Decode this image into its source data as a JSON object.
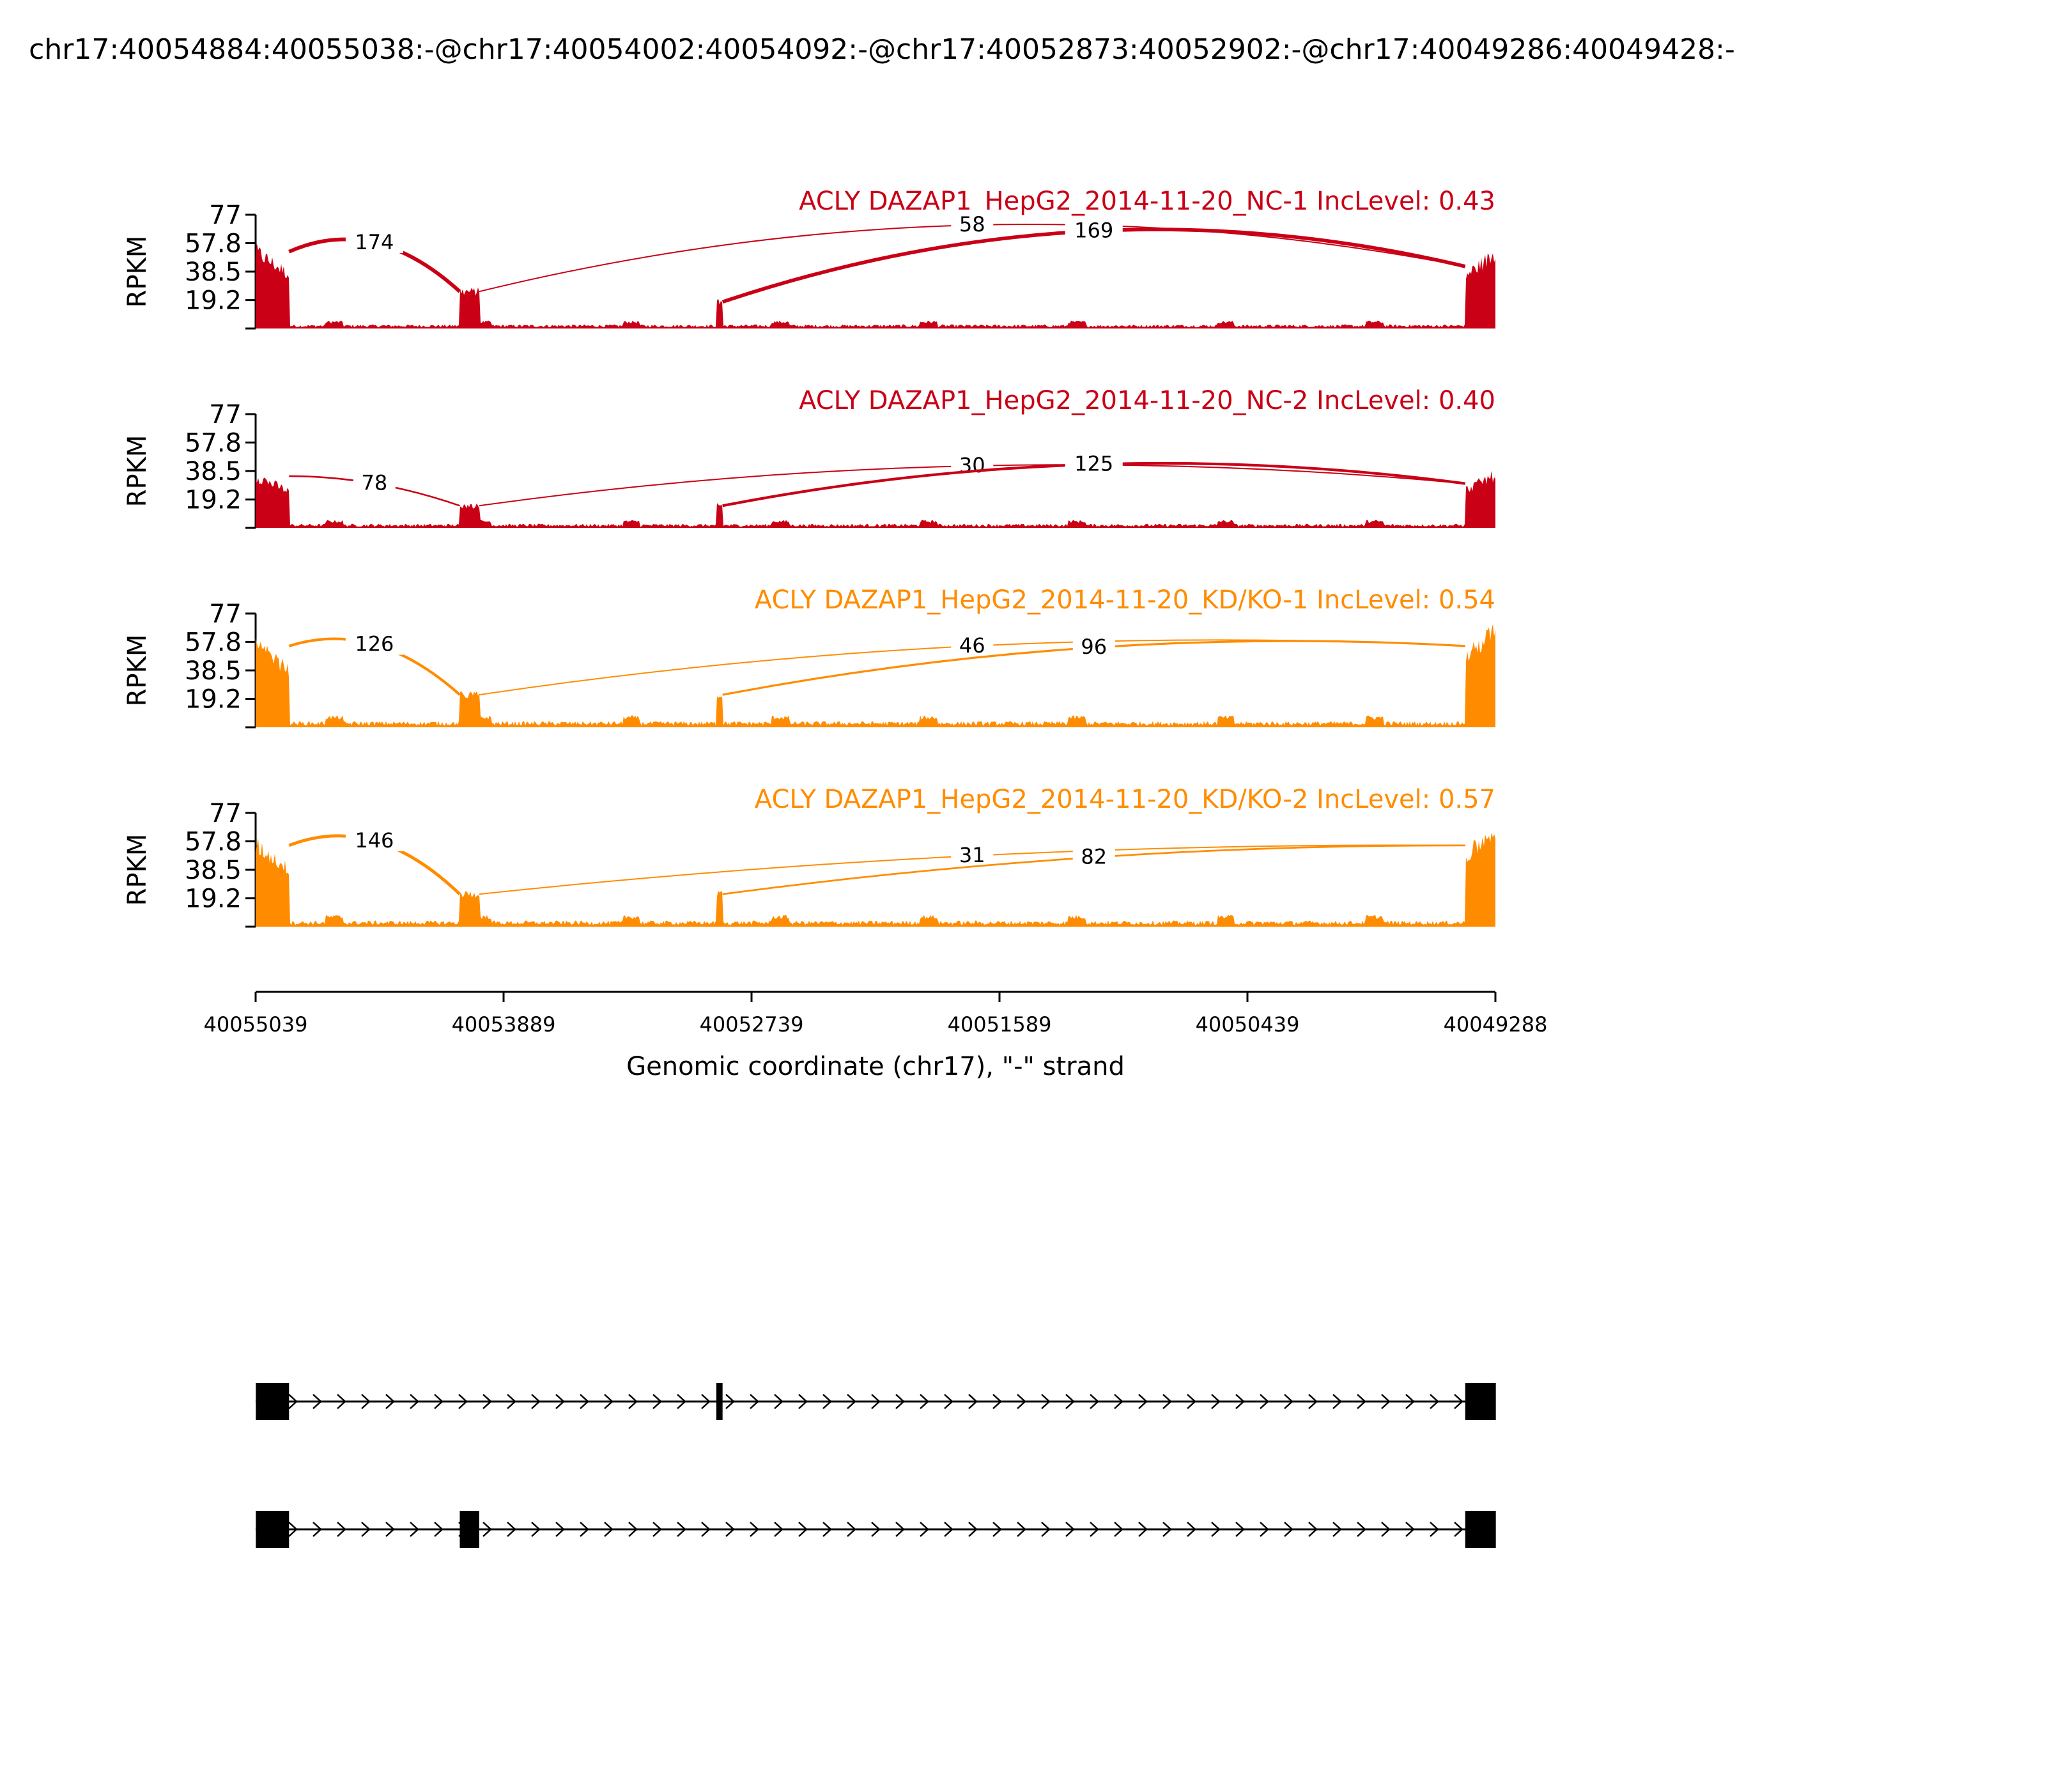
{
  "chart_data": {
    "type": "area",
    "title": "chr17:40054884:40055038:-@chr17:40054002:40054092:-@chr17:40052873:40052902:-@chr17:40049286:40049428:-",
    "ylabel": "RPKM",
    "yticks": [
      "77",
      "57.8",
      "38.5",
      "19.2"
    ],
    "ylim": [
      0,
      77
    ],
    "xlabel": "Genomic coordinate (chr17), \"-\" strand",
    "xticks": [
      "40055039",
      "40053889",
      "40052739",
      "40051589",
      "40050439",
      "40049288"
    ],
    "xlim": [
      40055039,
      40049288
    ],
    "exons": [
      {
        "start": 40055038,
        "end": 40054884
      },
      {
        "start": 40054092,
        "end": 40054002
      },
      {
        "start": 40052902,
        "end": 40052873
      },
      {
        "start": 40049428,
        "end": 40049286
      }
    ],
    "panels": [
      {
        "label": "ACLY DAZAP1_HepG2_2014-11-20_NC-1 IncLevel: 0.43",
        "color": "#C90016",
        "exon_levels": [
          52,
          25,
          18,
          42
        ],
        "intron_level": 2,
        "junctions": [
          {
            "from": 40054884,
            "to": 40054092,
            "count": "174",
            "height": 58
          },
          {
            "from": 40054002,
            "to": 40049428,
            "count": "58",
            "height": 70
          },
          {
            "from": 40052873,
            "to": 40049428,
            "count": "169",
            "height": 66
          }
        ]
      },
      {
        "label": "ACLY DAZAP1_HepG2_2014-11-20_NC-2 IncLevel: 0.40",
        "color": "#C90016",
        "exon_levels": [
          35,
          15,
          15,
          30
        ],
        "intron_level": 2,
        "junctions": [
          {
            "from": 40054884,
            "to": 40054092,
            "count": "78",
            "height": 30
          },
          {
            "from": 40054002,
            "to": 40049428,
            "count": "30",
            "height": 42
          },
          {
            "from": 40052873,
            "to": 40049428,
            "count": "125",
            "height": 43
          }
        ]
      },
      {
        "label": "ACLY DAZAP1_HepG2_2014-11-20_KD/KO-1 IncLevel: 0.54",
        "color": "#FF8C00",
        "exon_levels": [
          55,
          22,
          22,
          55
        ],
        "intron_level": 3,
        "junctions": [
          {
            "from": 40054884,
            "to": 40054092,
            "count": "126",
            "height": 56
          },
          {
            "from": 40054002,
            "to": 40049428,
            "count": "46",
            "height": 55
          },
          {
            "from": 40052873,
            "to": 40049428,
            "count": "96",
            "height": 54
          }
        ]
      },
      {
        "label": "ACLY DAZAP1_HepG2_2014-11-20_KD/KO-2 IncLevel: 0.57",
        "color": "#FF8C00",
        "exon_levels": [
          55,
          22,
          22,
          55
        ],
        "intron_level": 3,
        "junctions": [
          {
            "from": 40054884,
            "to": 40054092,
            "count": "146",
            "height": 58
          },
          {
            "from": 40054002,
            "to": 40049428,
            "count": "31",
            "height": 48
          },
          {
            "from": 40052873,
            "to": 40049428,
            "count": "82",
            "height": 47
          }
        ]
      }
    ],
    "isoforms": [
      {
        "exons": [
          0,
          2,
          3
        ]
      },
      {
        "exons": [
          0,
          1,
          3
        ]
      }
    ]
  }
}
